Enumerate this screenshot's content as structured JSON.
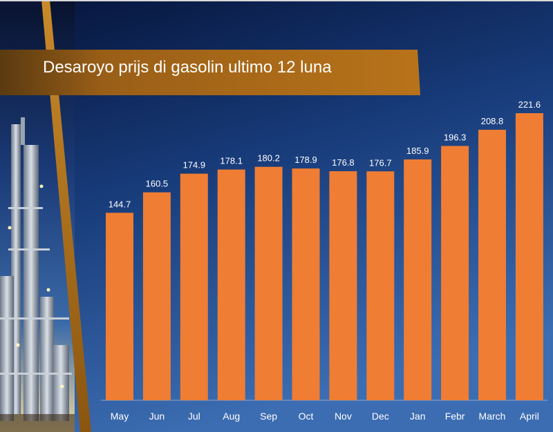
{
  "slide": {
    "title": "Desaroyo prijs di gasolin ultimo 12 luna"
  },
  "colors": {
    "bar": "#ef7d33",
    "background_dark": "#0a1a40",
    "background_light": "#3a68ac",
    "title_band": "#b06d17",
    "label_text": "#ffffff"
  },
  "chart_data": {
    "type": "bar",
    "title": "Desaroyo prijs di gasolin ultimo 12 luna",
    "xlabel": "",
    "ylabel": "",
    "categories": [
      "May",
      "Jun",
      "Jul",
      "Aug",
      "Sep",
      "Oct",
      "Nov",
      "Dec",
      "Jan",
      "Febr",
      "March",
      "April"
    ],
    "values": [
      144.7,
      160.5,
      174.9,
      178.1,
      180.2,
      178.9,
      176.8,
      176.7,
      185.9,
      196.3,
      208.8,
      221.6
    ],
    "ylim": [
      0,
      221.6
    ],
    "grid": false,
    "legend": "none",
    "data_labels": true
  }
}
